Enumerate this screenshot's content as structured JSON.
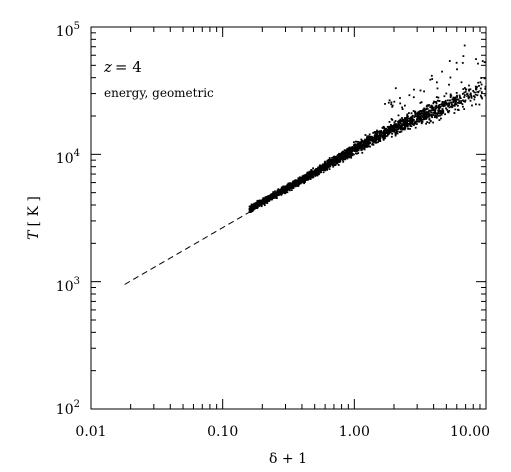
{
  "chart_data": {
    "type": "scatter",
    "title": "",
    "xlabel": "δ + 1",
    "ylabel_var": "T",
    "ylabel_unit": "[ K ]",
    "xscale": "log",
    "yscale": "log",
    "xlim": [
      0.01,
      10.0
    ],
    "ylim": [
      100,
      100000
    ],
    "x_tick_labels": [
      "0.01",
      "0.10",
      "1.00",
      "10.00"
    ],
    "y_tick_labels": [
      {
        "base": "10",
        "exp": "2"
      },
      {
        "base": "10",
        "exp": "3"
      },
      {
        "base": "10",
        "exp": "4"
      },
      {
        "base": "10",
        "exp": "5"
      }
    ],
    "annotations": {
      "redshift_var": "z",
      "redshift_value": "= 4",
      "method": "energy, geometric"
    },
    "dashed_fit_line": {
      "points": [
        [
          0.018,
          950
        ],
        [
          0.25,
          4600
        ],
        [
          1.0,
          11000
        ],
        [
          3.0,
          20000
        ],
        [
          10.0,
          33000
        ]
      ]
    },
    "scatter_ridge": {
      "x_range": [
        0.16,
        10.0
      ],
      "points": [
        [
          0.16,
          3700
        ],
        [
          0.5,
          7200
        ],
        [
          1.0,
          11000
        ],
        [
          2.0,
          16000
        ],
        [
          5.0,
          24000
        ],
        [
          10.0,
          33000
        ]
      ]
    },
    "point_color": "#000000",
    "grid": false,
    "legend": "none"
  }
}
